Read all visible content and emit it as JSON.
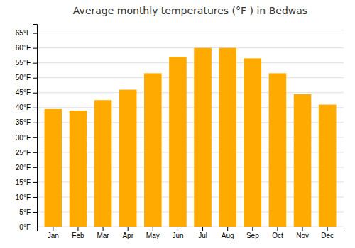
{
  "chart_data": {
    "type": "bar",
    "title": "Average monthly temperatures (°F ) in Bedwas",
    "categories": [
      "Jan",
      "Feb",
      "Mar",
      "Apr",
      "May",
      "Jun",
      "Jul",
      "Aug",
      "Sep",
      "Oct",
      "Nov",
      "Dec"
    ],
    "values": [
      39.5,
      39.0,
      42.5,
      46.0,
      51.5,
      57.0,
      60.0,
      60.0,
      56.5,
      51.5,
      44.5,
      41.0
    ],
    "color": "#FFAA00",
    "ylim": [
      0,
      68
    ],
    "yticks": [
      {
        "value": 0,
        "label": "0°F"
      },
      {
        "value": 5,
        "label": "5°F"
      },
      {
        "value": 10,
        "label": "10°F"
      },
      {
        "value": 15,
        "label": "15°F"
      },
      {
        "value": 20,
        "label": "20°F"
      },
      {
        "value": 25,
        "label": "25°F"
      },
      {
        "value": 30,
        "label": "30°F"
      },
      {
        "value": 35,
        "label": "35°F"
      },
      {
        "value": 40,
        "label": "40°F"
      },
      {
        "value": 45,
        "label": "45°F"
      },
      {
        "value": 50,
        "label": "50°F"
      },
      {
        "value": 55,
        "label": "55°F"
      },
      {
        "value": 60,
        "label": "60°F"
      },
      {
        "value": 65,
        "label": "65°F"
      }
    ],
    "grid": true
  }
}
